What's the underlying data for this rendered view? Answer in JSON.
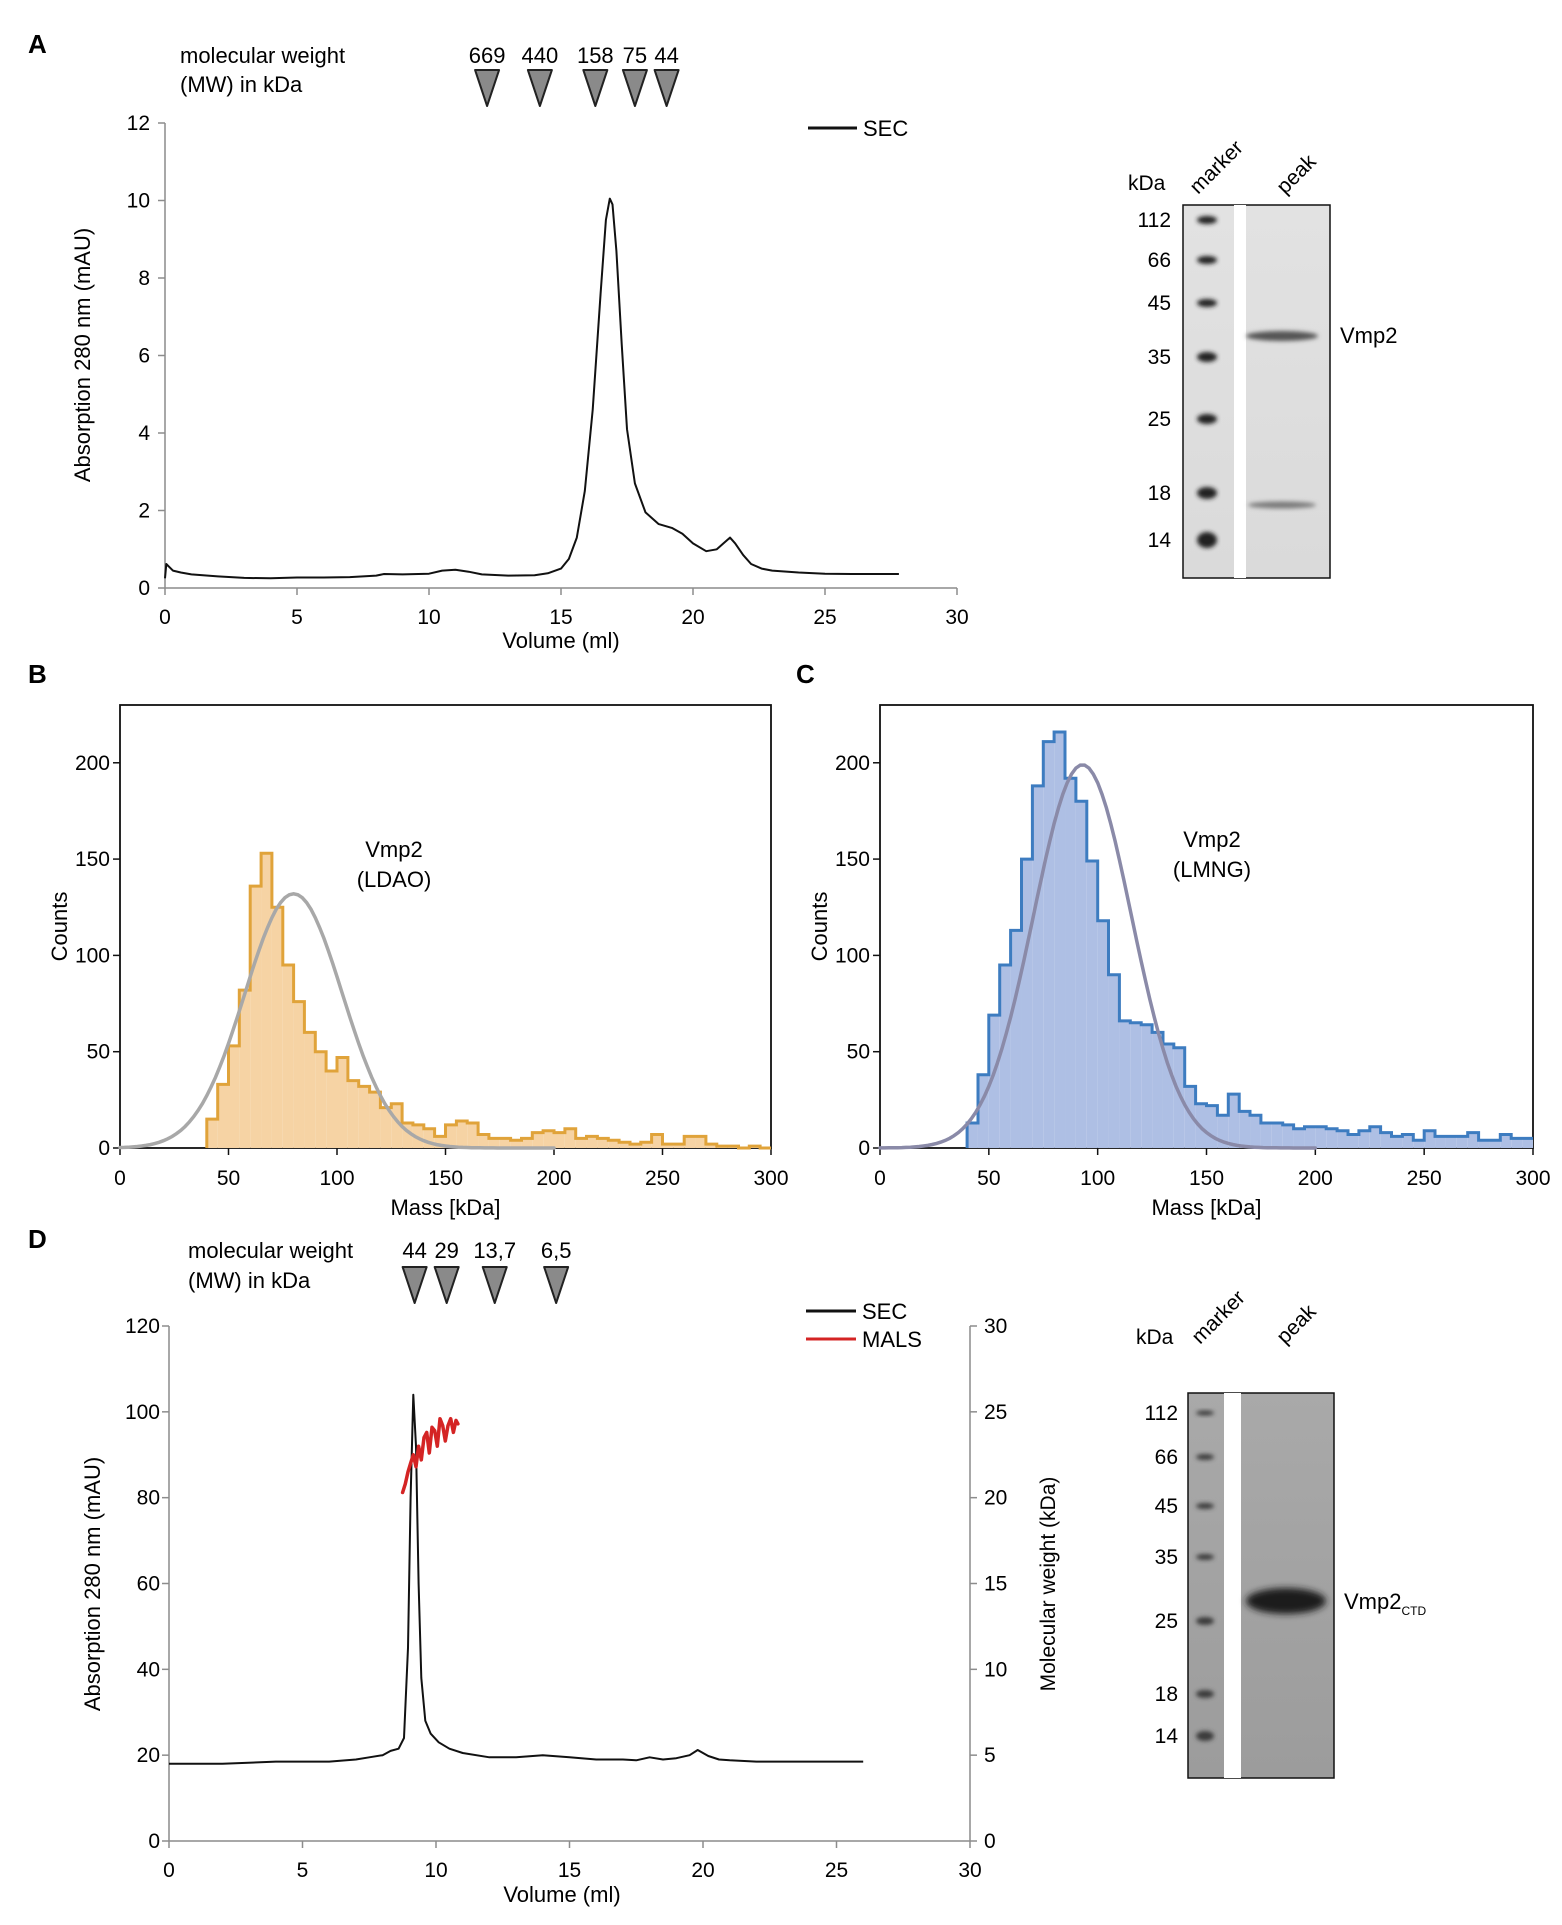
{
  "colors": {
    "ink": "#000000",
    "axis_gray": "#8c8c8c",
    "marker_gray": "#8a8a8a",
    "sec_line": "#111111",
    "mals_red": "#d42424",
    "ldao_edge": "#e0a33a",
    "ldao_fill": "#f6d3a4",
    "lmng_edge": "#3d7cc0",
    "lmng_fill": "#aebfe4",
    "fit_gray": "#a8a8a8",
    "fit_purple": "#8a8aa8"
  },
  "panels": {
    "A": "A",
    "B": "B",
    "C": "C",
    "D": "D"
  },
  "mw_title": {
    "line1": "molecular weight",
    "line2": "(MW) in kDa"
  },
  "markers_A": [
    {
      "label": "669",
      "x": 12.2
    },
    {
      "label": "440",
      "x": 14.2
    },
    {
      "label": "158",
      "x": 16.3
    },
    {
      "label": "75",
      "x": 17.8
    },
    {
      "label": "44",
      "x": 19.0
    }
  ],
  "markers_D": [
    {
      "label": "44",
      "x": 9.2
    },
    {
      "label": "29",
      "x": 10.4
    },
    {
      "label": "13,7",
      "x": 12.2
    },
    {
      "label": "6,5",
      "x": 14.5
    }
  ],
  "gel_A": {
    "kda_label": "kDa",
    "lane_labels": [
      "marker",
      "peak"
    ],
    "ladder": [
      "112",
      "66",
      "45",
      "35",
      "25",
      "18",
      "14"
    ],
    "band_label": "Vmp2"
  },
  "gel_D": {
    "kda_label": "kDa",
    "lane_labels": [
      "marker",
      "peak"
    ],
    "ladder": [
      "112",
      "66",
      "45",
      "35",
      "25",
      "18",
      "14"
    ],
    "band_label": "Vmp2",
    "band_subscript": "CTD"
  },
  "chart_data": [
    {
      "id": "A",
      "type": "line",
      "title": "",
      "xlabel": "Volume (ml)",
      "ylabel": "Absorption 280 nm (mAU)",
      "xlim": [
        0,
        30
      ],
      "ylim": [
        0,
        12
      ],
      "xticks": [
        "0",
        "5",
        "10",
        "15",
        "20",
        "25",
        "30"
      ],
      "yticks": [
        "0",
        "2",
        "4",
        "6",
        "8",
        "10",
        "12"
      ],
      "legend": [
        {
          "label": "SEC",
          "color": "#111111"
        }
      ],
      "series": [
        {
          "name": "SEC",
          "x": [
            0,
            0.05,
            0.15,
            0.3,
            0.6,
            1,
            2,
            3,
            4,
            5,
            6,
            7,
            8,
            8.3,
            9,
            10,
            10.5,
            11,
            11.5,
            12,
            13,
            14,
            14.5,
            15,
            15.3,
            15.6,
            15.9,
            16.2,
            16.5,
            16.7,
            16.85,
            16.95,
            17.1,
            17.3,
            17.5,
            17.8,
            18.2,
            18.7,
            19.2,
            19.6,
            20,
            20.5,
            20.9,
            21.2,
            21.4,
            21.6,
            21.9,
            22.2,
            22.6,
            23,
            24,
            25,
            26,
            27,
            27.8
          ],
          "y": [
            0.25,
            0.62,
            0.55,
            0.45,
            0.4,
            0.35,
            0.3,
            0.26,
            0.25,
            0.27,
            0.27,
            0.28,
            0.32,
            0.36,
            0.35,
            0.37,
            0.45,
            0.47,
            0.42,
            0.35,
            0.32,
            0.33,
            0.38,
            0.5,
            0.75,
            1.3,
            2.5,
            4.6,
            7.6,
            9.5,
            10.05,
            9.9,
            8.7,
            6.3,
            4.1,
            2.7,
            1.95,
            1.65,
            1.55,
            1.4,
            1.15,
            0.95,
            1.0,
            1.18,
            1.3,
            1.15,
            0.85,
            0.62,
            0.5,
            0.45,
            0.4,
            0.37,
            0.36,
            0.36,
            0.36
          ]
        }
      ]
    },
    {
      "id": "B",
      "type": "bar",
      "title": "",
      "annotation": [
        "Vmp2",
        "(LDAO)"
      ],
      "xlabel": "Mass [kDa]",
      "ylabel": "Counts",
      "xlim": [
        0,
        300
      ],
      "ylim": [
        0,
        230
      ],
      "xticks": [
        "0",
        "50",
        "100",
        "150",
        "200",
        "250",
        "300"
      ],
      "yticks": [
        "0",
        "50",
        "100",
        "150",
        "200"
      ],
      "bin_width": 5,
      "bin_start": 40,
      "counts": [
        15,
        33,
        53,
        82,
        136,
        153,
        125,
        95,
        76,
        60,
        50,
        40,
        47,
        35,
        32,
        29,
        21,
        23,
        13,
        12,
        10,
        6,
        12,
        14,
        13,
        7,
        5,
        5,
        4,
        5,
        8,
        9,
        8,
        10,
        5,
        6,
        5,
        4,
        3,
        2,
        3,
        7,
        2,
        2,
        6,
        6,
        2,
        1,
        1,
        0,
        1,
        0
      ],
      "fit": {
        "type": "gaussian",
        "amplitude": 132,
        "mean": 80,
        "sigma": 22.5,
        "name": "Gaussian fit"
      }
    },
    {
      "id": "C",
      "type": "bar",
      "title": "",
      "annotation": [
        "Vmp2",
        "(LMNG)"
      ],
      "xlabel": "Mass [kDa]",
      "ylabel": "Counts",
      "xlim": [
        0,
        300
      ],
      "ylim": [
        0,
        230
      ],
      "xticks": [
        "0",
        "50",
        "100",
        "150",
        "200",
        "250",
        "300"
      ],
      "yticks": [
        "0",
        "50",
        "100",
        "150",
        "200"
      ],
      "bin_width": 5,
      "bin_start": 40,
      "counts": [
        13,
        38,
        69,
        95,
        113,
        150,
        188,
        211,
        216,
        192,
        180,
        149,
        118,
        90,
        66,
        65,
        64,
        60,
        54,
        52,
        32,
        23,
        22,
        17,
        28,
        19,
        17,
        13,
        13,
        12,
        10,
        11,
        11,
        10,
        9,
        7,
        9,
        11,
        8,
        6,
        7,
        4,
        9,
        6,
        6,
        6,
        8,
        4,
        4,
        7,
        5,
        5
      ],
      "fit": {
        "type": "gaussian",
        "amplitude": 199,
        "mean": 93,
        "sigma": 22.5,
        "name": "Gaussian fit"
      }
    },
    {
      "id": "D",
      "type": "line",
      "title": "",
      "xlabel": "Volume (ml)",
      "ylabel": "Absorption 280 nm (mAU)",
      "ylabel_right": "Molecular weight (kDa)",
      "xlim": [
        0,
        30
      ],
      "ylim": [
        0,
        120
      ],
      "ylim_right": [
        0,
        30
      ],
      "xticks": [
        "0",
        "5",
        "10",
        "15",
        "20",
        "25",
        "30"
      ],
      "yticks": [
        "0",
        "20",
        "40",
        "60",
        "80",
        "100",
        "120"
      ],
      "yticks_right": [
        "0",
        "5",
        "10",
        "15",
        "20",
        "25",
        "30"
      ],
      "legend": [
        {
          "label": "SEC",
          "color": "#111111"
        },
        {
          "label": "MALS",
          "color": "#d42424"
        }
      ],
      "series": [
        {
          "name": "SEC",
          "axis": "left",
          "x": [
            0,
            2,
            4,
            6,
            7,
            7.5,
            8,
            8.3,
            8.6,
            8.8,
            8.95,
            9.05,
            9.15,
            9.25,
            9.35,
            9.45,
            9.6,
            9.8,
            10.1,
            10.5,
            11,
            12,
            13,
            14,
            15,
            16,
            17,
            17.5,
            18,
            18.5,
            19,
            19.5,
            19.8,
            20.2,
            20.6,
            21,
            22,
            23,
            24,
            25,
            26
          ],
          "y": [
            18,
            18,
            18.5,
            18.5,
            19,
            19.5,
            20,
            21,
            21.5,
            24,
            45,
            80,
            104,
            92,
            60,
            38,
            28,
            25,
            23,
            21.5,
            20.5,
            19.5,
            19.5,
            20,
            19.5,
            19,
            19,
            18.8,
            19.5,
            19,
            19.3,
            20,
            21.2,
            19.8,
            19,
            18.8,
            18.5,
            18.5,
            18.5,
            18.5,
            18.5
          ]
        },
        {
          "name": "MALS",
          "axis": "right",
          "x": [
            8.75,
            8.85,
            8.95,
            9.05,
            9.15,
            9.25,
            9.35,
            9.45,
            9.55,
            9.65,
            9.75,
            9.85,
            9.95,
            10.05,
            10.15,
            10.25,
            10.35,
            10.45,
            10.55,
            10.65,
            10.75,
            10.82
          ],
          "y": [
            20.3,
            20.8,
            21.5,
            22.0,
            22.5,
            21.8,
            23.0,
            22.2,
            23.5,
            23.8,
            22.6,
            24.1,
            23.9,
            23.0,
            24.6,
            24.2,
            23.3,
            24.2,
            24.6,
            23.8,
            24.5,
            24.3
          ]
        }
      ]
    }
  ]
}
